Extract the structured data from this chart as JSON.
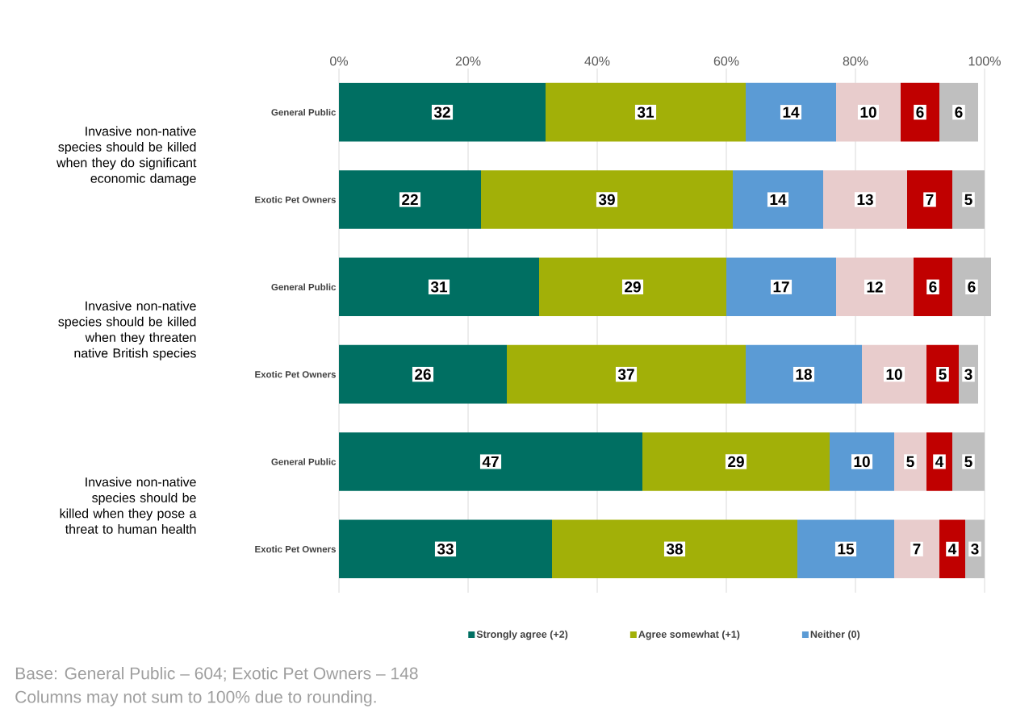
{
  "chart_data": {
    "type": "bar",
    "orientation": "horizontal",
    "stacked": true,
    "data_labels": true,
    "grid": "x",
    "legend": "bottom",
    "categories": [
      "General Public",
      "Exotic Pet Owners",
      "General Public",
      "Exotic Pet Owners",
      "General Public",
      "Exotic Pet Owners"
    ],
    "series": [
      {
        "name": "Strongly agree (+2)",
        "color": "#006f62",
        "values": [
          32,
          22,
          31,
          26,
          47,
          33
        ]
      },
      {
        "name": "Agree somewhat (+1)",
        "color": "#a2b008",
        "values": [
          31,
          39,
          29,
          37,
          29,
          38
        ]
      },
      {
        "name": "Neither (0)",
        "color": "#5b9bd5",
        "values": [
          14,
          14,
          17,
          18,
          10,
          15
        ]
      },
      {
        "color": "#e8cccc",
        "values": [
          10,
          13,
          12,
          10,
          5,
          7
        ]
      },
      {
        "color": "#c00000",
        "values": [
          6,
          7,
          6,
          5,
          4,
          4
        ]
      },
      {
        "color": "#bfbfbf",
        "values": [
          6,
          5,
          6,
          3,
          5,
          3
        ]
      }
    ],
    "xlim": [
      0,
      101
    ],
    "xticks": [
      {
        "value": 0,
        "label": "0%"
      },
      {
        "value": 20,
        "label": "20%"
      },
      {
        "value": 40,
        "label": "40%"
      },
      {
        "value": 60,
        "label": "60%"
      },
      {
        "value": 80,
        "label": "80%"
      },
      {
        "value": 100,
        "label": "100%"
      }
    ],
    "annotations": [
      "Invasive non-native species should be killed when they do significant economic damage",
      "Invasive non-native species should be killed when they threaten native British species",
      "Invasive non-native species should be killed when they pose a threat to human health",
      "Base: General Public – 604; Exotic Pet Owners – 148",
      "Columns may not sum to 100% due to rounding."
    ]
  }
}
